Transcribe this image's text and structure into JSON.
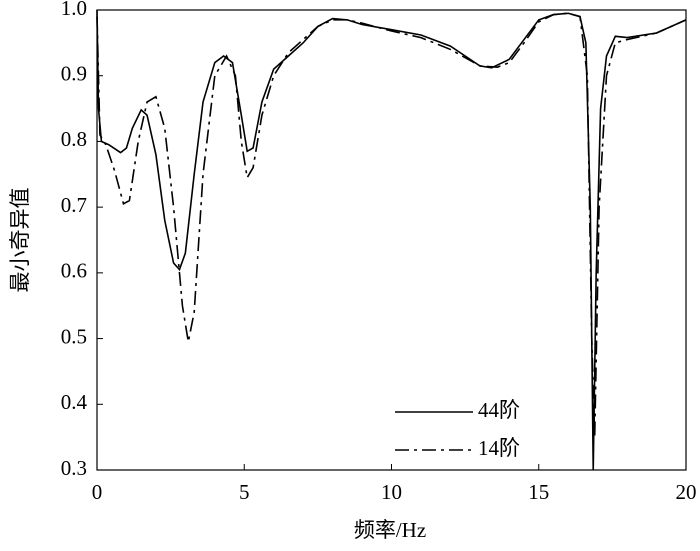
{
  "chart_data": {
    "type": "line",
    "xlabel": "频率/Hz",
    "ylabel": "最小奇异值",
    "xlim": [
      0,
      20
    ],
    "ylim": [
      0.3,
      1
    ],
    "xticks": [
      0,
      5,
      10,
      15,
      20
    ],
    "yticks": [
      0.3,
      0.4,
      0.5,
      0.6,
      0.7,
      0.8,
      0.9,
      {
        "value": 1,
        "label": "1.0"
      }
    ],
    "legend": "lower center",
    "series": [
      {
        "name": "44阶",
        "color": "#000000",
        "linestyle": "solid",
        "x": [
          0,
          0.05,
          0.15,
          0.4,
          0.8,
          1.0,
          1.2,
          1.5,
          1.7,
          2.0,
          2.3,
          2.6,
          2.8,
          3.0,
          3.3,
          3.6,
          4.0,
          4.3,
          4.6,
          4.9,
          5.1,
          5.3,
          5.6,
          6.0,
          6.5,
          7.0,
          7.5,
          8.0,
          8.5,
          9,
          10,
          11,
          12,
          13,
          13.4,
          14,
          14.5,
          15,
          15.5,
          16,
          16.4,
          16.6,
          16.75,
          16.85,
          16.95,
          17.1,
          17.3,
          17.6,
          18,
          19,
          20
        ],
        "values": [
          1.0,
          0.85,
          0.8,
          0.795,
          0.783,
          0.79,
          0.82,
          0.848,
          0.84,
          0.78,
          0.68,
          0.615,
          0.605,
          0.63,
          0.75,
          0.86,
          0.92,
          0.93,
          0.92,
          0.84,
          0.785,
          0.79,
          0.86,
          0.91,
          0.93,
          0.95,
          0.975,
          0.987,
          0.985,
          0.978,
          0.97,
          0.962,
          0.945,
          0.915,
          0.912,
          0.925,
          0.955,
          0.985,
          0.993,
          0.995,
          0.99,
          0.95,
          0.7,
          0.3,
          0.6,
          0.85,
          0.93,
          0.96,
          0.958,
          0.965,
          0.985
        ]
      },
      {
        "name": "14阶",
        "color": "#000000",
        "linestyle": "dashdot",
        "x": [
          0,
          0.1,
          0.3,
          0.6,
          0.9,
          1.1,
          1.4,
          1.7,
          2.0,
          2.3,
          2.6,
          2.9,
          3.1,
          3.3,
          3.6,
          4.0,
          4.4,
          4.7,
          4.9,
          5.1,
          5.3,
          5.6,
          6.0,
          6.5,
          7.0,
          7.5,
          8.0,
          8.5,
          9,
          10,
          11,
          12,
          13,
          13.6,
          14,
          14.5,
          15,
          15.5,
          16,
          16.4,
          16.65,
          16.8,
          16.9,
          17.05,
          17.3,
          17.6,
          18,
          19,
          20
        ],
        "values": [
          0.99,
          0.81,
          0.795,
          0.755,
          0.705,
          0.71,
          0.8,
          0.86,
          0.868,
          0.82,
          0.7,
          0.55,
          0.495,
          0.54,
          0.75,
          0.9,
          0.93,
          0.9,
          0.8,
          0.745,
          0.76,
          0.84,
          0.9,
          0.935,
          0.955,
          0.975,
          0.985,
          0.985,
          0.98,
          0.968,
          0.958,
          0.94,
          0.915,
          0.913,
          0.92,
          0.95,
          0.982,
          0.993,
          0.995,
          0.99,
          0.9,
          0.5,
          0.35,
          0.7,
          0.9,
          0.95,
          0.955,
          0.965,
          0.985
        ]
      }
    ]
  }
}
